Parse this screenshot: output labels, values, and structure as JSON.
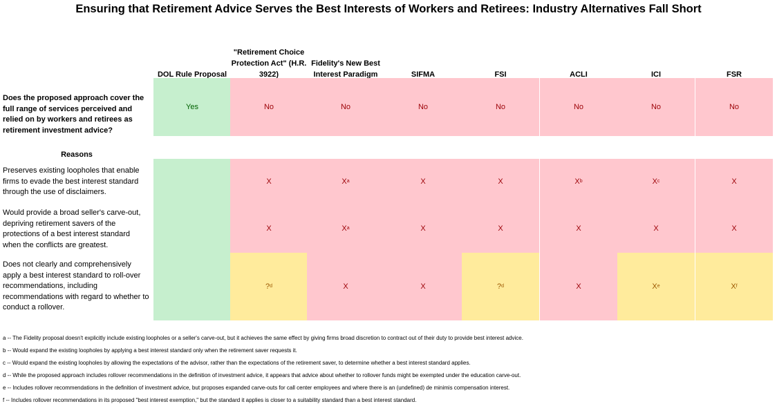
{
  "title": "Ensuring that Retirement Advice Serves the Best Interests of Workers and Retirees: Industry Alternatives Fall Short",
  "columns": [
    "DOL Rule Proposal",
    "\"Retirement Choice Protection Act\" (H.R. 3922)",
    "Fidelity's New Best Interest Paradigm",
    "SIFMA",
    "FSI",
    "ACLI",
    "ICI",
    "FSR"
  ],
  "question": {
    "label": "Does the proposed approach cover the full range of services perceived and relied on by workers and retirees as retirement investment advice?",
    "values": [
      "Yes",
      "No",
      "No",
      "No",
      "No",
      "No",
      "No",
      "No"
    ]
  },
  "reasons_label": "Reasons",
  "reasons": [
    {
      "label": "Preserves existing loopholes that enable firms to evade the best interest standard through the use of disclaimers.",
      "values": [
        "",
        "X",
        "X",
        "X",
        "X",
        "X",
        "X",
        "X"
      ],
      "notes": [
        "",
        "",
        "a",
        "",
        "",
        "b",
        "c",
        ""
      ]
    },
    {
      "label": "Would provide a broad seller's carve-out, depriving retirement savers of the protections of a best interest standard when the conflicts are greatest.",
      "values": [
        "",
        "X",
        "X",
        "X",
        "X",
        "X",
        "X",
        "X"
      ],
      "notes": [
        "",
        "",
        "a",
        "",
        "",
        "",
        "",
        ""
      ]
    },
    {
      "label": "Does not clearly and comprehensively apply a best interest standard to roll-over recommendations, including recommendations with regard to whether to conduct a rollover.",
      "values": [
        "",
        "?",
        "X",
        "X",
        "?",
        "X",
        "X",
        "X"
      ],
      "notes": [
        "",
        "d",
        "",
        "",
        "d",
        "",
        "e",
        "f"
      ]
    }
  ],
  "cell_colors": {
    "question": [
      "green",
      "red",
      "red",
      "red",
      "red",
      "red",
      "red",
      "red"
    ],
    "reason_0": [
      "green",
      "red",
      "red",
      "red",
      "red",
      "red",
      "red",
      "red"
    ],
    "reason_1": [
      "green",
      "red",
      "red",
      "red",
      "red",
      "red",
      "red",
      "red"
    ],
    "reason_2": [
      "green",
      "yellow",
      "red",
      "red",
      "yellow",
      "red",
      "yellow",
      "yellow"
    ]
  },
  "colors": {
    "green": "#c6efce",
    "red": "#ffc7ce",
    "yellow": "#ffeb9c"
  },
  "footnotes": [
    "a -- The Fidelity proposal doesn't explicitly include existing loopholes or a seller's carve-out, but it achieves the same effect by giving firms broad discretion to contract out of their duty to provide best interest advice.",
    "b -- Would expand the existing loopholes by applying a best interest standard only when the retirement saver requests it.",
    "c -- Would expand the existing loopholes by allowing the expectations of the advisor, rather than the expectations of the retirement saver, to determine whether a best interest standard applies.",
    "d -- While the proposed approach includes rollover recommendations in the definition of investment advice, it appears that advice about whether to rollover funds might be exempted under the education carve-out.",
    "e -- Includes rollover recommendations in the definition of investment advice, but proposes expanded carve-outs for call center employees and where there is an (undefined) de minimis compensation interest.",
    "f -- Includes rollover recommendations in its proposed \"best interest exemption,\" but the standard it applies is closer to a suitability standard than a best interest standard."
  ]
}
